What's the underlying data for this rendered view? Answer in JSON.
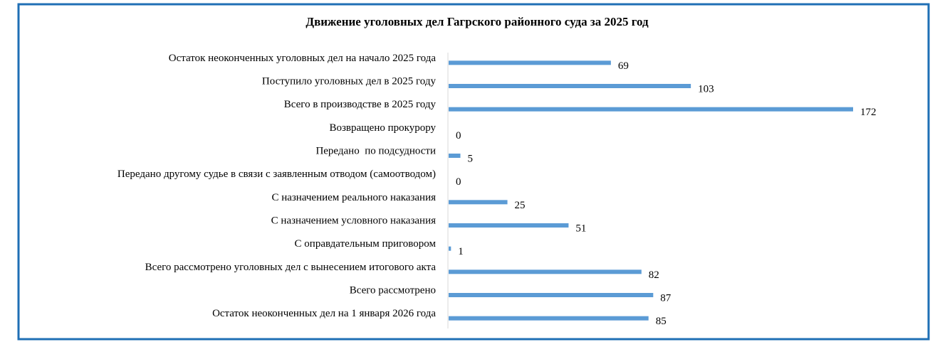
{
  "chart_data": {
    "type": "hbar",
    "title": "Движение уголовных дел Гагрского районного суда за 2025 год",
    "categories": [
      "Остаток неоконченных уголовных дел на начало 2025 года",
      "Поступило уголовных дел в 2025 году",
      "Всего в производстве в 2025 году",
      "Возвращено прокурору",
      "Передано  по подсудности",
      "Передано другому судье в связи с заявленным отводом (самоотводом)",
      "С назначением реального наказания",
      "С назначением условного наказания",
      "С оправдательным приговором",
      "Всего рассмотрено уголовных дел с вынесением итогового акта",
      "Всего рассмотрено",
      "Остаток неоконченных дел на 1 января 2026 года"
    ],
    "values": [
      69,
      103,
      172,
      0,
      5,
      0,
      25,
      51,
      1,
      82,
      87,
      85
    ],
    "color": "#5b9bd5",
    "xlim": [
      0,
      172
    ]
  }
}
